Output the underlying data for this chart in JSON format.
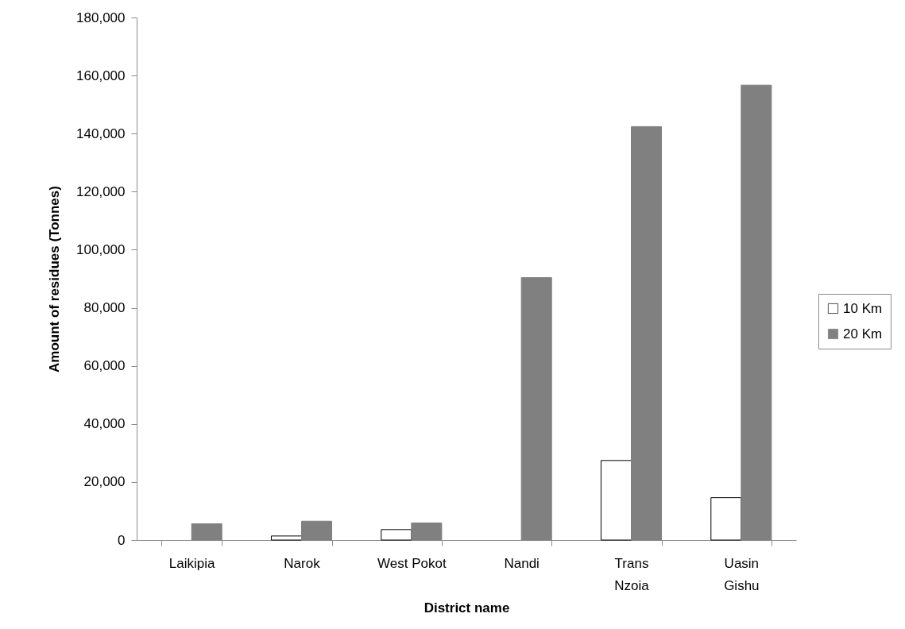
{
  "chart_data": {
    "type": "bar",
    "xlabel": "District name",
    "ylabel": "Amount of residues (Tonnes)",
    "categories": [
      "Laikipia",
      "Narok",
      "West Pokot",
      "Nandi",
      "Trans Nzoia",
      "Uasin Gishu"
    ],
    "series": [
      {
        "name": "10 Km",
        "color": "#ffffff",
        "values": [
          null,
          1400,
          3600,
          null,
          27400,
          14600
        ]
      },
      {
        "name": "20 Km",
        "color": "#808080",
        "values": [
          5600,
          6500,
          5900,
          90400,
          142400,
          156700
        ]
      }
    ],
    "ylim": [
      0,
      180000
    ],
    "yticks": [
      {
        "value": 0,
        "label": "0"
      },
      {
        "value": 20000,
        "label": "20,000"
      },
      {
        "value": 40000,
        "label": "40,000"
      },
      {
        "value": 60000,
        "label": "60,000"
      },
      {
        "value": 80000,
        "label": "80,000"
      },
      {
        "value": 100000,
        "label": "100,000"
      },
      {
        "value": 120000,
        "label": "120,000"
      },
      {
        "value": 140000,
        "label": "140,000"
      },
      {
        "value": 160000,
        "label": "160,000"
      },
      {
        "value": 180000,
        "label": "180,000"
      }
    ],
    "legend": "right"
  }
}
